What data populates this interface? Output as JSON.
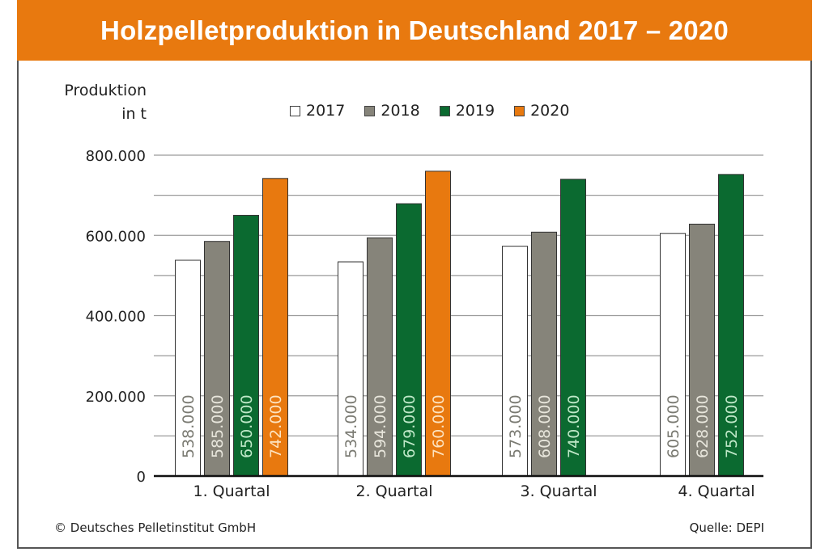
{
  "title": "Holzpelletproduktion in Deutschland 2017 – 2020",
  "footer": {
    "copyright": "© Deutsches Pelletinstitut GmbH",
    "source": "Quelle: DEPI"
  },
  "legend": [
    {
      "label": "2017",
      "color": "#ffffff"
    },
    {
      "label": "2018",
      "color": "#86847a"
    },
    {
      "label": "2019",
      "color": "#0b6a30"
    },
    {
      "label": "2020",
      "color": "#e8790f"
    }
  ],
  "chart_data": {
    "type": "bar",
    "title": "Holzpelletproduktion in Deutschland 2017 – 2020",
    "ylabel_line1": "Produktion",
    "ylabel_line2": "in t",
    "xlabel": "",
    "ylim": [
      0,
      800000
    ],
    "yticks": [
      0,
      200000,
      400000,
      600000,
      800000
    ],
    "ytick_labels": [
      "0",
      "200.000",
      "400.000",
      "600.000",
      "800.000"
    ],
    "minor_gridlines_every": 100000,
    "grid": true,
    "legend_position": "top-center",
    "categories": [
      "1. Quartal",
      "2. Quartal",
      "3. Quartal",
      "4. Quartal"
    ],
    "series": [
      {
        "name": "2017",
        "color": "#ffffff",
        "label_color": "#7a7a72",
        "values": [
          538000,
          534000,
          573000,
          605000
        ],
        "labels": [
          "538.000",
          "534.000",
          "573.000",
          "605.000"
        ]
      },
      {
        "name": "2018",
        "color": "#86847a",
        "label_color": "#e8e6dc",
        "values": [
          585000,
          594000,
          608000,
          628000
        ],
        "labels": [
          "585.000",
          "594.000",
          "608.000",
          "628.000"
        ]
      },
      {
        "name": "2019",
        "color": "#0b6a30",
        "label_color": "#bfe8c8",
        "values": [
          650000,
          679000,
          740000,
          752000
        ],
        "labels": [
          "650.000",
          "679.000",
          "740.000",
          "752.000"
        ]
      },
      {
        "name": "2020",
        "color": "#e8790f",
        "label_color": "#fde3c0",
        "values": [
          742000,
          760000,
          null,
          null
        ],
        "labels": [
          "742.000",
          "760.000",
          "",
          ""
        ]
      }
    ]
  }
}
